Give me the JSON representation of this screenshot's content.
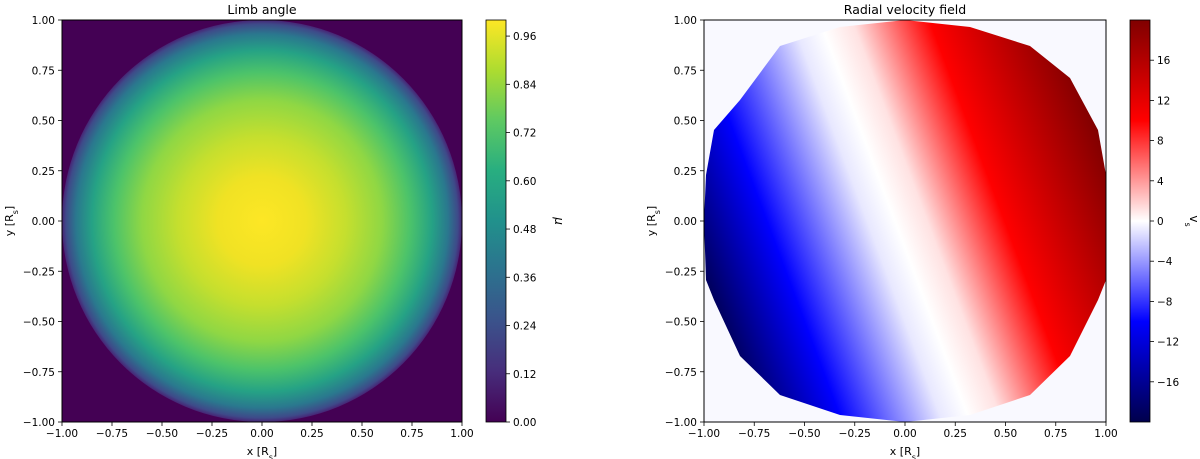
{
  "chart_data": [
    {
      "type": "heatmap",
      "title": "Limb angle",
      "xlabel": "x [R",
      "xlabel_sub": "s",
      "xlabel_close": "]",
      "ylabel": "y [R",
      "ylabel_sub": "s",
      "ylabel_close": "]",
      "xlim": [
        -1.0,
        1.0
      ],
      "ylim": [
        -1.0,
        1.0
      ],
      "xticks": [
        "−1.00",
        "−0.75",
        "−0.50",
        "−0.25",
        "0.00",
        "0.25",
        "0.50",
        "0.75",
        "1.00"
      ],
      "yticks": [
        "−1.00",
        "−0.75",
        "−0.50",
        "−0.25",
        "0.00",
        "0.25",
        "0.50",
        "0.75",
        "1.00"
      ],
      "field": "mu = sqrt(1 - x^2 - y^2) inside unit disk, 0 outside",
      "colormap": "viridis",
      "colorbar": {
        "label": "μ",
        "range": [
          0.0,
          1.0
        ],
        "ticks": [
          0.0,
          0.12,
          0.24,
          0.36,
          0.48,
          0.6,
          0.72,
          0.84,
          0.96
        ],
        "tick_labels": [
          "0.00",
          "0.12",
          "0.24",
          "0.36",
          "0.48",
          "0.60",
          "0.72",
          "0.84",
          "0.96"
        ]
      }
    },
    {
      "type": "heatmap",
      "title": "Radial velocity field",
      "xlabel": "x [R",
      "xlabel_sub": "s",
      "xlabel_close": "]",
      "ylabel": "y [R",
      "ylabel_sub": "s",
      "ylabel_close": "]",
      "xlim": [
        -1.0,
        1.0
      ],
      "ylim": [
        -1.0,
        1.0
      ],
      "xticks": [
        "−1.00",
        "−0.75",
        "−0.50",
        "−0.25",
        "0.00",
        "0.25",
        "0.50",
        "0.75",
        "1.00"
      ],
      "yticks": [
        "−1.00",
        "−0.75",
        "−0.50",
        "−0.25",
        "0.00",
        "0.25",
        "0.50",
        "0.75",
        "1.00"
      ],
      "field": "v_s proportional to projected rotation axis, zero along tilted line through center",
      "colormap": "seismic",
      "colorbar": {
        "label": "v",
        "label_sub": "s",
        "range": [
          -20,
          20
        ],
        "ticks": [
          -16,
          -12,
          -8,
          -4,
          0,
          4,
          8,
          12,
          16
        ],
        "tick_labels": [
          "−16",
          "−12",
          "−8",
          "−4",
          "0",
          "4",
          "8",
          "12",
          "16"
        ]
      }
    }
  ]
}
